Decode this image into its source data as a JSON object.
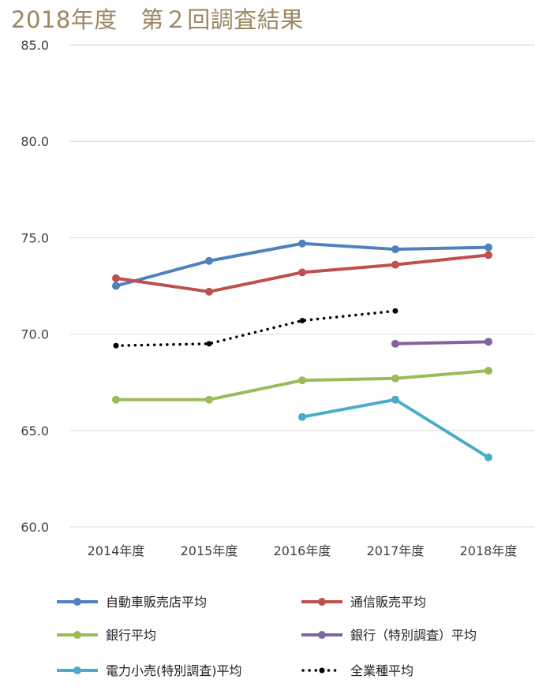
{
  "chart_data": {
    "type": "line",
    "title": "2018年度　第２回調査結果",
    "categories": [
      "2014年度",
      "2015年度",
      "2016年度",
      "2017年度",
      "2018年度"
    ],
    "ylim": [
      60,
      85
    ],
    "yticks": [
      "60.0",
      "65.0",
      "70.0",
      "75.0",
      "80.0",
      "85.0"
    ],
    "grid": true,
    "legend_position": "bottom",
    "series": [
      {
        "name": "自動車販売店平均",
        "color": "#4f81bd",
        "style": "solid",
        "values": [
          72.5,
          73.8,
          74.7,
          74.4,
          74.5
        ]
      },
      {
        "name": "通信販売平均",
        "color": "#c0504d",
        "style": "solid",
        "values": [
          72.9,
          72.2,
          73.2,
          73.6,
          74.1
        ]
      },
      {
        "name": "銀行平均",
        "color": "#9bbb59",
        "style": "solid",
        "values": [
          66.6,
          66.6,
          67.6,
          67.7,
          68.1
        ]
      },
      {
        "name": "銀行（特別調査）平均",
        "color": "#8064a2",
        "style": "solid",
        "values": [
          null,
          null,
          null,
          69.5,
          69.6
        ]
      },
      {
        "name": "電力小売(特別調査)平均",
        "color": "#4bacc6",
        "style": "solid",
        "values": [
          null,
          null,
          65.7,
          66.6,
          63.6
        ]
      },
      {
        "name": "全業種平均",
        "color": "#000000",
        "style": "dotted",
        "values": [
          69.4,
          69.5,
          70.7,
          71.2,
          null
        ]
      }
    ]
  }
}
